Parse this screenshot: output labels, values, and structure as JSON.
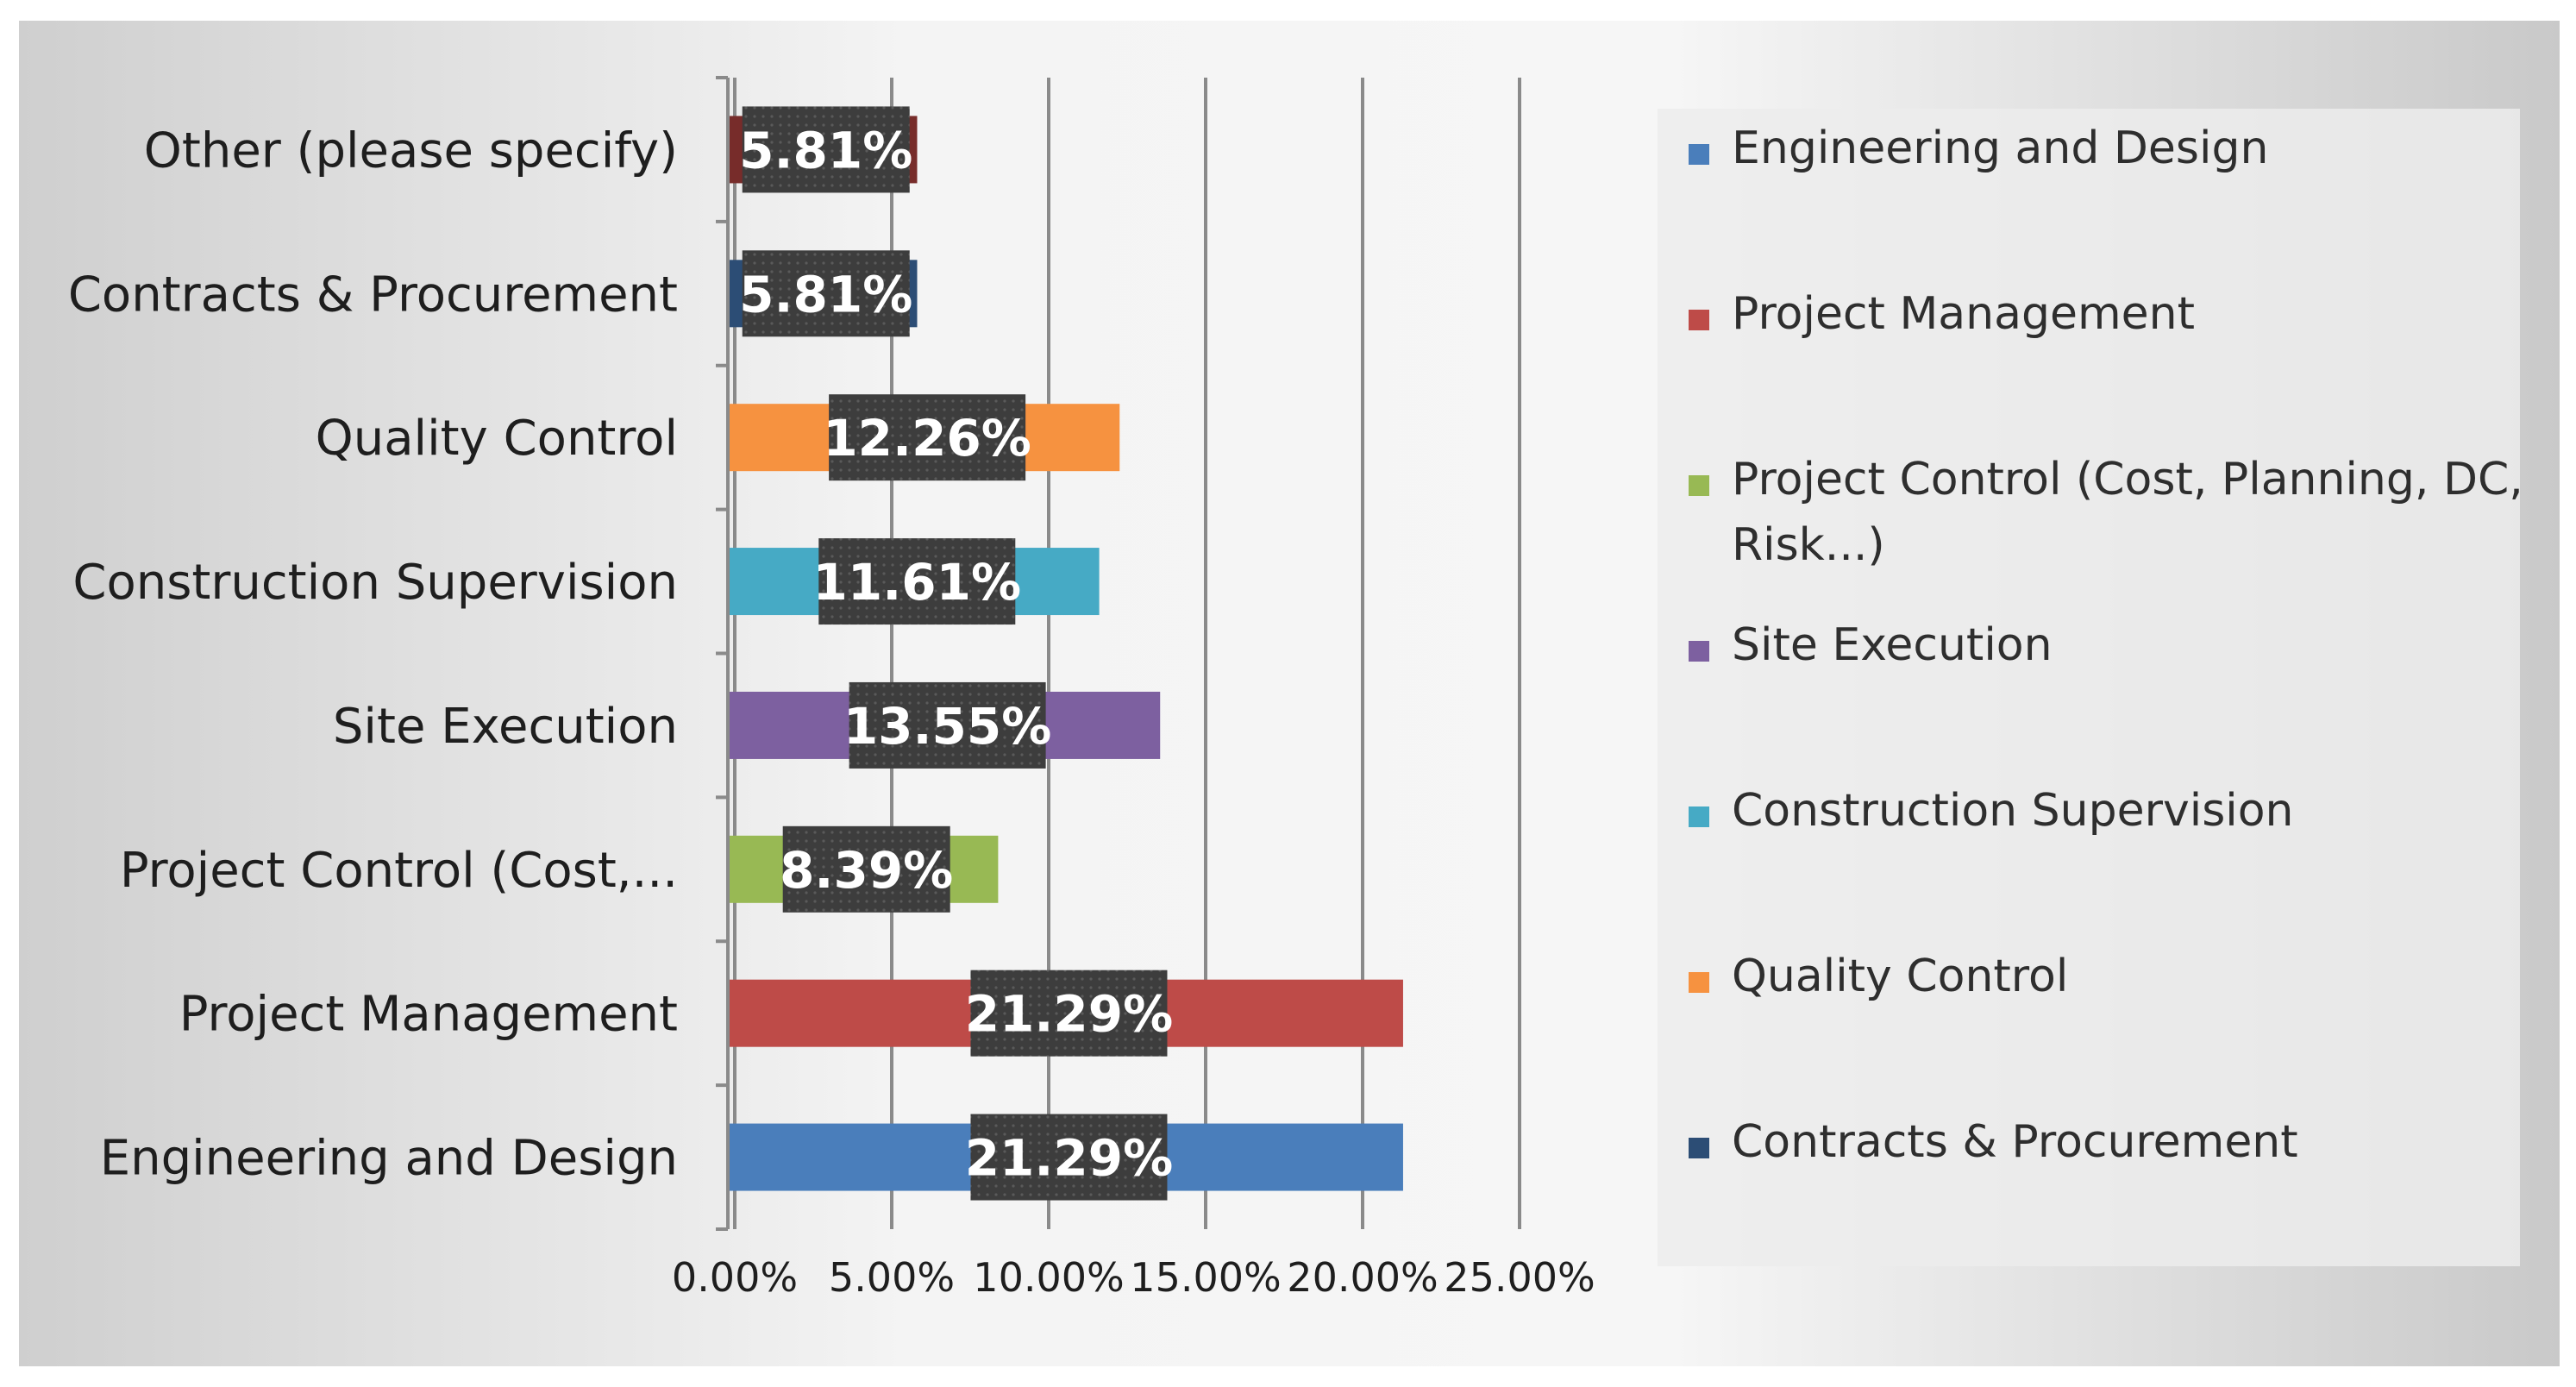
{
  "chart_data": {
    "type": "bar",
    "orientation": "horizontal",
    "title": "",
    "xlabel": "",
    "ylabel": "",
    "xlim": [
      0,
      25
    ],
    "grid": true,
    "legend_position": "right",
    "x_ticks": [
      "0.00%",
      "5.00%",
      "10.00%",
      "15.00%",
      "20.00%",
      "25.00%"
    ],
    "categories": [
      "Engineering and Design",
      "Project Management",
      "Project Control (Cost,...",
      "Site Execution",
      "Construction Supervision",
      "Quality Control",
      "Contracts & Procurement",
      "Other (please specify)"
    ],
    "values": [
      21.29,
      21.29,
      8.39,
      13.55,
      11.61,
      12.26,
      5.81,
      5.81
    ],
    "data_labels": [
      "21.29%",
      "21.29%",
      "8.39%",
      "13.55%",
      "11.61%",
      "12.26%",
      "5.81%",
      "5.81%"
    ],
    "colors": [
      "#4a7ebb",
      "#be4b48",
      "#98b954",
      "#7d60a0",
      "#46aac5",
      "#f69240",
      "#2c4d75",
      "#772c2a"
    ],
    "legend": [
      {
        "label": "Engineering and Design",
        "color": "#4a7ebb"
      },
      {
        "label": "Project Management",
        "color": "#be4b48"
      },
      {
        "label": "Project Control (Cost, Planning, DC,",
        "label_line2": "Risk...)",
        "color": "#98b954"
      },
      {
        "label": "Site Execution",
        "color": "#7d60a0"
      },
      {
        "label": "Construction Supervision",
        "color": "#46aac5"
      },
      {
        "label": "Quality Control",
        "color": "#f69240"
      },
      {
        "label": "Contracts & Procurement",
        "color": "#2c4d75"
      }
    ]
  }
}
